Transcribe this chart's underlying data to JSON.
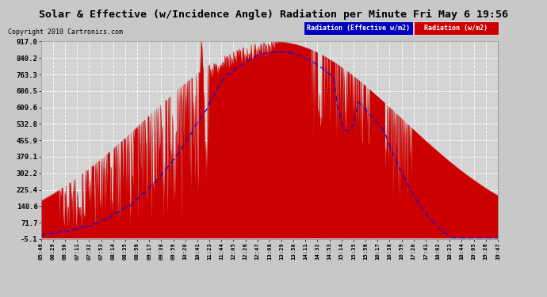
{
  "title": "Solar & Effective (w/Incidence Angle) Radiation per Minute Fri May 6 19:56",
  "copyright": "Copyright 2010 Cartronics.com",
  "bg_color": "#c8c8c8",
  "plot_bg_color": "#d3d3d3",
  "grid_color": "#ffffff",
  "yticks": [
    917.0,
    840.2,
    763.3,
    686.5,
    609.6,
    532.8,
    455.9,
    379.1,
    302.2,
    225.4,
    148.6,
    71.7,
    -5.1
  ],
  "ymin": -5.1,
  "ymax": 917.0,
  "legend_effective_label": "Radiation (Effective w/m2)",
  "legend_radiation_label": "Radiation (w/m2)",
  "legend_effective_bg": "#0000bb",
  "legend_radiation_bg": "#cc0000",
  "xtick_labels": [
    "05:46",
    "06:29",
    "06:50",
    "07:11",
    "07:32",
    "07:53",
    "08:14",
    "08:35",
    "08:56",
    "09:17",
    "09:38",
    "09:59",
    "10:20",
    "10:41",
    "11:23",
    "11:44",
    "12:05",
    "12:26",
    "12:47",
    "13:08",
    "13:29",
    "13:50",
    "14:11",
    "14:32",
    "14:53",
    "15:14",
    "15:35",
    "15:56",
    "16:17",
    "16:38",
    "16:59",
    "17:20",
    "17:41",
    "18:02",
    "18:23",
    "18:44",
    "19:05",
    "19:26",
    "19:47"
  ]
}
